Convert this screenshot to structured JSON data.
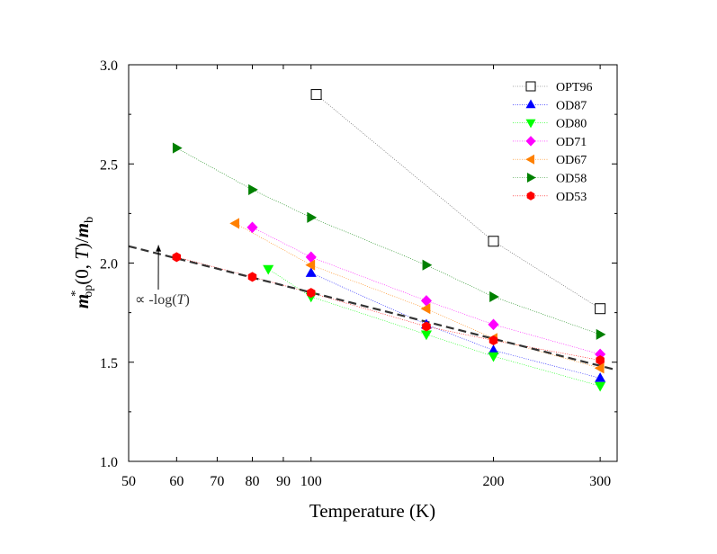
{
  "chart_data": {
    "type": "scatter",
    "title": "",
    "xlabel": "Temperature (K)",
    "ylabel": {
      "m": "m",
      "star": "*",
      "sub_op": "op",
      "mid": "(0, ",
      "T": "T",
      "close": ")/",
      "mb": "m",
      "sub_b": "b"
    },
    "x_scale": "log",
    "xlim": [
      50,
      320
    ],
    "ylim": [
      1.0,
      3.0
    ],
    "x_ticks": [
      50,
      60,
      70,
      80,
      90,
      100,
      200,
      300
    ],
    "x_tick_labels": [
      "50",
      "60",
      "70",
      "80",
      "90",
      "100",
      "200",
      "300"
    ],
    "y_ticks": [
      1.0,
      1.5,
      2.0,
      2.5,
      3.0
    ],
    "y_tick_labels": [
      "1.0",
      "1.5",
      "2.0",
      "2.5",
      "3.0"
    ],
    "grid": false,
    "legend_position": "top-right",
    "series": [
      {
        "name": "OPT96",
        "marker": "square-open",
        "color": "#555555",
        "x": [
          102,
          200,
          300
        ],
        "y": [
          2.85,
          2.11,
          1.77
        ]
      },
      {
        "name": "OD87",
        "marker": "triangle-up",
        "color": "#0000ff",
        "x": [
          100,
          155,
          200,
          300
        ],
        "y": [
          1.95,
          1.69,
          1.56,
          1.42
        ]
      },
      {
        "name": "OD80",
        "marker": "triangle-down",
        "color": "#00ff00",
        "x": [
          85,
          100,
          155,
          200,
          300
        ],
        "y": [
          1.97,
          1.83,
          1.64,
          1.53,
          1.38
        ]
      },
      {
        "name": "OD71",
        "marker": "diamond",
        "color": "#ff00ff",
        "x": [
          80,
          100,
          155,
          200,
          300
        ],
        "y": [
          2.18,
          2.03,
          1.81,
          1.69,
          1.54
        ]
      },
      {
        "name": "OD67",
        "marker": "triangle-left",
        "color": "#ff8000",
        "x": [
          75,
          100,
          155,
          200,
          300
        ],
        "y": [
          2.2,
          1.99,
          1.77,
          1.62,
          1.47
        ]
      },
      {
        "name": "OD58",
        "marker": "triangle-right",
        "color": "#008000",
        "x": [
          60,
          80,
          100,
          155,
          200,
          300
        ],
        "y": [
          2.58,
          2.37,
          2.23,
          1.99,
          1.83,
          1.64
        ]
      },
      {
        "name": "OD53",
        "marker": "hexagon",
        "color": "#ff0000",
        "x": [
          60,
          80,
          100,
          155,
          200,
          300
        ],
        "y": [
          2.03,
          1.93,
          1.85,
          1.68,
          1.61,
          1.51
        ]
      }
    ],
    "fit_line": {
      "x": [
        50,
        320
      ],
      "y": [
        2.085,
        1.46
      ],
      "color": "#333333",
      "style": "dashed"
    },
    "annotation": {
      "prefix": "∝ -log(",
      "T": "T",
      "suffix": ")",
      "arrow_to": {
        "x": 56,
        "y": 2.09
      }
    }
  }
}
